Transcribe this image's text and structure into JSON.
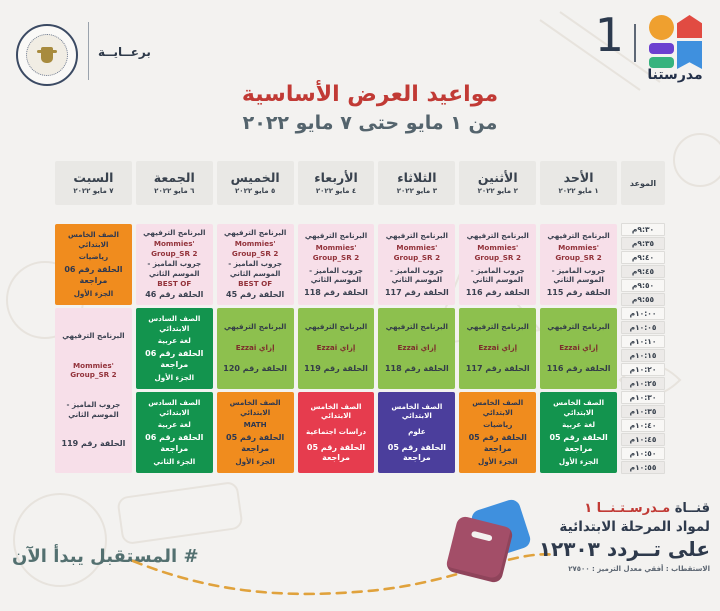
{
  "header": {
    "sponsor_label": "برعــايــة",
    "channel_number": "1",
    "channel_name": "مدرستنا",
    "title": "مواعيد العرض الأساسية",
    "subtitle": "من ١ مايو حتى ٧ مايو ٢٠٢٢"
  },
  "colors": {
    "accent_red": "#c13a35",
    "pink": "#f7dfe9",
    "light_green": "#8dc04e",
    "dark_green": "#13944e",
    "orange": "#f08c1e",
    "red": "#e63c4e",
    "purple": "#4b3e9c",
    "teal": "#537070"
  },
  "schedule": {
    "time_header": "الموعد",
    "times": [
      "٩:٣٠م",
      "٩:٣٥م",
      "٩:٤٠م",
      "٩:٤٥م",
      "٩:٥٠م",
      "٩:٥٥م",
      "١٠:٠٠م",
      "١٠:٠٥م",
      "١٠:١٠م",
      "١٠:١٥م",
      "١٠:٢٠م",
      "١٠:٢٥م",
      "١٠:٣٠م",
      "١٠:٣٥م",
      "١٠:٤٠م",
      "١٠:٤٥م",
      "١٠:٥٠م",
      "١٠:٥٥م"
    ],
    "days": [
      {
        "name": "الأحد",
        "date": "١ مايو ٢٠٢٢",
        "blocks": [
          {
            "color": "pink",
            "rows": 6,
            "lines": [
              {
                "t": "البرنامج الترفيهي"
              },
              {
                "t": "Mommies' Group_SR 2",
                "c": "en"
              },
              {
                "t": "جروب الماميز - الموسم الثاني"
              },
              {
                "t": "الحلقة رقم 115",
                "c": "num"
              }
            ]
          },
          {
            "color": "green",
            "rows": 6,
            "lines": [
              {
                "t": "البرنامج الترفيهي"
              },
              {
                "t": "إزاي Ezzai",
                "c": "en"
              },
              {
                "t": "الحلقة رقم 116",
                "c": "num"
              }
            ]
          },
          {
            "color": "dgreen",
            "rows": 6,
            "lines": [
              {
                "t": "الصف الخامس الابتدائي"
              },
              {
                "t": "لغة عربية"
              },
              {
                "t": "الحلقة رقم 05 مراجعة",
                "c": "num"
              },
              {
                "t": "الجزء الأول"
              }
            ]
          }
        ]
      },
      {
        "name": "الأثنين",
        "date": "٢ مايو ٢٠٢٢",
        "blocks": [
          {
            "color": "pink",
            "rows": 6,
            "lines": [
              {
                "t": "البرنامج الترفيهي"
              },
              {
                "t": "Mommies' Group_SR 2",
                "c": "en"
              },
              {
                "t": "جروب الماميز - الموسم الثاني"
              },
              {
                "t": "الحلقة رقم 116",
                "c": "num"
              }
            ]
          },
          {
            "color": "green",
            "rows": 6,
            "lines": [
              {
                "t": "البرنامج الترفيهي"
              },
              {
                "t": "إزاي Ezzai",
                "c": "en"
              },
              {
                "t": "الحلقة رقم 117",
                "c": "num"
              }
            ]
          },
          {
            "color": "orange",
            "rows": 6,
            "lines": [
              {
                "t": "الصف الخامس الابتدائي"
              },
              {
                "t": "رياضيات"
              },
              {
                "t": "الحلقة رقم 05 مراجعة",
                "c": "num"
              },
              {
                "t": "الجزء الأول"
              }
            ]
          }
        ]
      },
      {
        "name": "الثلاثاء",
        "date": "٣ مايو ٢٠٢٢",
        "blocks": [
          {
            "color": "pink",
            "rows": 6,
            "lines": [
              {
                "t": "البرنامج الترفيهي"
              },
              {
                "t": "Mommies' Group_SR 2",
                "c": "en"
              },
              {
                "t": "جروب الماميز - الموسم الثاني"
              },
              {
                "t": "الحلقة رقم 117",
                "c": "num"
              }
            ]
          },
          {
            "color": "green",
            "rows": 6,
            "lines": [
              {
                "t": "البرنامج الترفيهي"
              },
              {
                "t": "إزاي Ezzai",
                "c": "en"
              },
              {
                "t": "الحلقة رقم 118",
                "c": "num"
              }
            ]
          },
          {
            "color": "purple",
            "rows": 6,
            "lines": [
              {
                "t": "الصف الخامس الابتدائي"
              },
              {
                "t": "علوم"
              },
              {
                "t": "الحلقة رقم 05 مراجعة",
                "c": "num"
              }
            ]
          }
        ]
      },
      {
        "name": "الأربعاء",
        "date": "٤ مايو ٢٠٢٢",
        "blocks": [
          {
            "color": "pink",
            "rows": 6,
            "lines": [
              {
                "t": "البرنامج الترفيهي"
              },
              {
                "t": "Mommies' Group_SR 2",
                "c": "en"
              },
              {
                "t": "جروب الماميز - الموسم الثاني"
              },
              {
                "t": "الحلقة رقم 118",
                "c": "num"
              }
            ]
          },
          {
            "color": "green",
            "rows": 6,
            "lines": [
              {
                "t": "البرنامج الترفيهي"
              },
              {
                "t": "إزاي Ezzai",
                "c": "en"
              },
              {
                "t": "الحلقة رقم 119",
                "c": "num"
              }
            ]
          },
          {
            "color": "red",
            "rows": 6,
            "lines": [
              {
                "t": "الصف الخامس الابتدائي"
              },
              {
                "t": "دراسات اجتماعية"
              },
              {
                "t": "الحلقة رقم 05 مراجعة",
                "c": "num"
              }
            ]
          }
        ]
      },
      {
        "name": "الخميس",
        "date": "٥ مايو ٢٠٢٢",
        "blocks": [
          {
            "color": "pink",
            "rows": 6,
            "lines": [
              {
                "t": "البرنامج الترفيهي"
              },
              {
                "t": "Mommies' Group_SR 2",
                "c": "en"
              },
              {
                "t": "جروب الماميز - الموسم الثاني"
              },
              {
                "t": "BEST OF",
                "c": "en"
              },
              {
                "t": "الحلقة رقم 45",
                "c": "num"
              }
            ]
          },
          {
            "color": "green",
            "rows": 6,
            "lines": [
              {
                "t": "البرنامج الترفيهي"
              },
              {
                "t": "إزاي Ezzai",
                "c": "en"
              },
              {
                "t": "الحلقة رقم 120",
                "c": "num"
              }
            ]
          },
          {
            "color": "orange",
            "rows": 6,
            "lines": [
              {
                "t": "الصف الخامس الابتدائي"
              },
              {
                "t": "MATH"
              },
              {
                "t": "الحلقة رقم 05 مراجعة",
                "c": "num"
              },
              {
                "t": "الجزء الأول"
              }
            ]
          }
        ]
      },
      {
        "name": "الجمعة",
        "date": "٦ مايو ٢٠٢٢",
        "blocks": [
          {
            "color": "pink",
            "rows": 6,
            "lines": [
              {
                "t": "البرنامج الترفيهي"
              },
              {
                "t": "Mommies' Group_SR 2",
                "c": "en"
              },
              {
                "t": "جروب الماميز - الموسم الثاني"
              },
              {
                "t": "BEST OF",
                "c": "en"
              },
              {
                "t": "الحلقة رقم 46",
                "c": "num"
              }
            ]
          },
          {
            "color": "dgreen",
            "rows": 6,
            "lines": [
              {
                "t": "الصف السادس الابتدائي"
              },
              {
                "t": "لغة عربية"
              },
              {
                "t": "الحلقة رقم 06 مراجعة",
                "c": "num"
              },
              {
                "t": "الجزء الأول"
              }
            ]
          },
          {
            "color": "dgreen",
            "rows": 6,
            "lines": [
              {
                "t": "الصف السادس الابتدائي"
              },
              {
                "t": "لغة عربية"
              },
              {
                "t": "الحلقة رقم 06 مراجعة",
                "c": "num"
              },
              {
                "t": "الجزء الثاني"
              }
            ]
          }
        ]
      },
      {
        "name": "السبت",
        "date": "٧ مايو ٢٠٢٢",
        "blocks": [
          {
            "color": "orange",
            "rows": 6,
            "lines": [
              {
                "t": "الصف الخامس الابتدائي"
              },
              {
                "t": "رياضيات"
              },
              {
                "t": "الحلقة رقم 06 مراجعة",
                "c": "num"
              },
              {
                "t": "الجزء الأول"
              }
            ]
          },
          {
            "color": "pink",
            "rows": 12,
            "lines": [
              {
                "t": "البرنامج الترفيهي"
              },
              {
                "t": "Mommies' Group_SR 2",
                "c": "en"
              },
              {
                "t": "جروب الماميز - الموسم الثاني"
              },
              {
                "t": "الحلقة رقم 119",
                "c": "num"
              }
            ]
          }
        ]
      }
    ]
  },
  "footer": {
    "hashtag": "# المستقبل يبدأ الآن",
    "channel_word": "قنــاة",
    "channel_name_red": "مـدرسـتـنــا ١",
    "line2": "لمواد المرحلة الابتدائية",
    "line3": "على تــردد ١٢٣٠٣",
    "line4": "الاستقطاب : أفقي    معدل الترميز : ٢٧٥٠٠"
  }
}
